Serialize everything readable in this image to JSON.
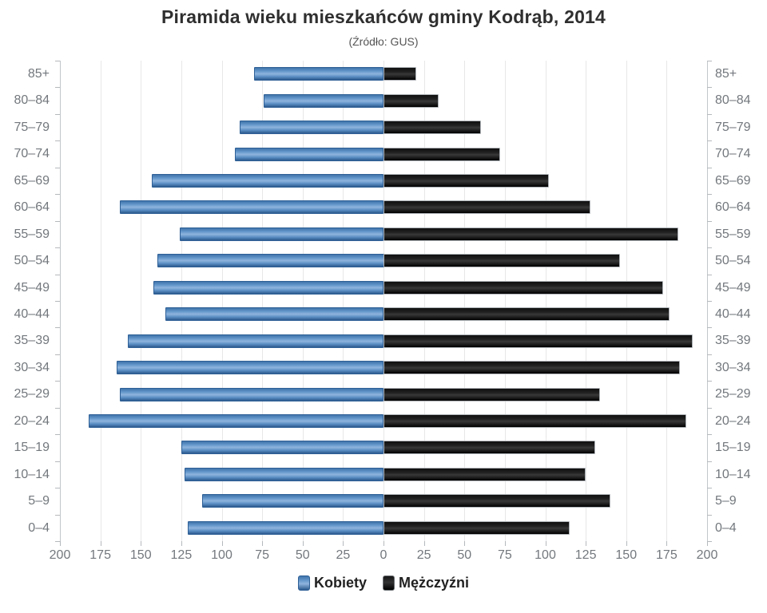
{
  "title": "Piramida wieku mieszkańców gminy Kodrąb, 2014",
  "subtitle": "(Źródło: GUS)",
  "legend": {
    "women": "Kobiety",
    "men": "Mężczyźni"
  },
  "colors": {
    "women_bar": "#4a80b8",
    "men_bar": "#161616",
    "gridline": "#e7e7e7",
    "axis_line": "#c3c7ca",
    "axis_label": "#73787d",
    "title_text": "#2f2f2f",
    "legend_text": "#222222"
  },
  "chart_data": {
    "type": "bar",
    "variant": "population-pyramid",
    "orientation": "horizontal",
    "title": "Piramida wieku mieszkańców gminy Kodrąb, 2014",
    "subtitle": "(Źródło: GUS)",
    "categories": [
      "85+",
      "80–84",
      "75–79",
      "70–74",
      "65–69",
      "60–64",
      "55–59",
      "50–54",
      "45–49",
      "40–44",
      "35–39",
      "30–34",
      "25–29",
      "20–24",
      "15–19",
      "10–14",
      "5–9",
      "0–4"
    ],
    "series": [
      {
        "name": "Kobiety",
        "side": "left",
        "color": "#4a80b8",
        "values": [
          80,
          74,
          89,
          92,
          143,
          163,
          126,
          140,
          142,
          135,
          158,
          165,
          163,
          182,
          125,
          123,
          112,
          121
        ]
      },
      {
        "name": "Mężczyźni",
        "side": "right",
        "color": "#161616",
        "values": [
          20,
          34,
          60,
          72,
          102,
          128,
          182,
          146,
          173,
          177,
          191,
          183,
          134,
          187,
          131,
          125,
          140,
          115
        ]
      }
    ],
    "xlim": [
      0,
      200
    ],
    "x_tick_step": 25,
    "axis_tick_labels": [
      "200",
      "175",
      "150",
      "125",
      "100",
      "75",
      "50",
      "25",
      "0",
      "25",
      "50",
      "75",
      "100",
      "125",
      "150",
      "175",
      "200"
    ],
    "grid": true,
    "legend_position": "bottom"
  }
}
